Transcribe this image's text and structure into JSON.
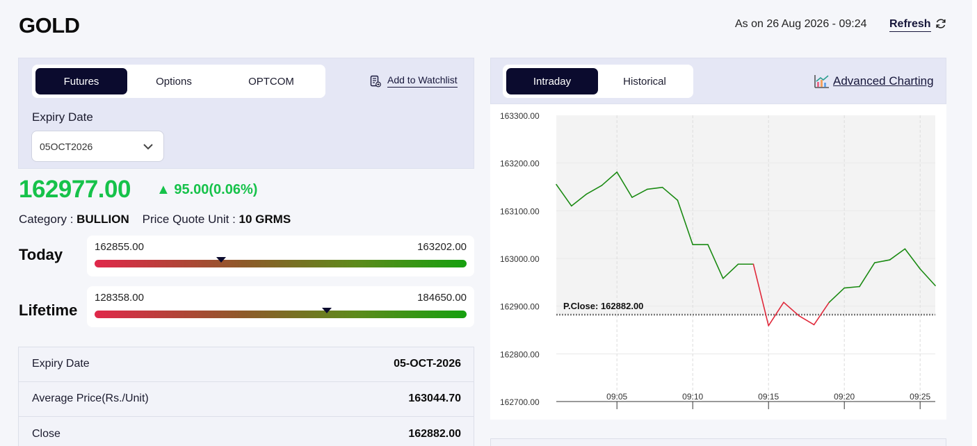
{
  "header": {
    "symbol": "GOLD",
    "as_on": "As on 26 Aug 2026 - 09:24",
    "refresh_label": "Refresh"
  },
  "contract_tabs": [
    {
      "label": "Futures",
      "active": true
    },
    {
      "label": "Options",
      "active": false
    },
    {
      "label": "OPTCOM",
      "active": false
    }
  ],
  "watchlist_label": "Add to Watchlist",
  "expiry": {
    "label": "Expiry Date",
    "selected": "05OCT2026"
  },
  "quote": {
    "price": "162977.00",
    "change": "▲ 95.00(0.06%)",
    "category_label": "Category :",
    "category_value": "BULLION",
    "unit_label": "Price Quote Unit :",
    "unit_value": "10 GRMS"
  },
  "ranges": [
    {
      "label": "Today",
      "low": "162855.00",
      "high": "163202.00",
      "position": 0.34
    },
    {
      "label": "Lifetime",
      "low": "128358.00",
      "high": "184650.00",
      "position": 0.624
    }
  ],
  "details": [
    {
      "key": "Expiry Date",
      "value": "05-OCT-2026"
    },
    {
      "key": "Average Price(Rs./Unit)",
      "value": "163044.70"
    },
    {
      "key": "Close",
      "value": "162882.00"
    }
  ],
  "chart_tabs": [
    {
      "label": "Intraday",
      "active": true
    },
    {
      "label": "Historical",
      "active": false
    }
  ],
  "advanced_charting_label": "Advanced Charting",
  "colors": {
    "up": "#16c24a",
    "line_up": "#1a8a12",
    "line_down": "#e0283a",
    "dark": "#0b0b2e"
  },
  "chart_data": {
    "type": "line",
    "ylim": [
      162700,
      163300
    ],
    "y_ticks": [
      "163300.00",
      "163200.00",
      "163100.00",
      "163000.00",
      "162900.00",
      "162800.00",
      "162700.00"
    ],
    "x_ticks": [
      "09:05",
      "09:10",
      "09:15",
      "09:20",
      "09:25"
    ],
    "x_tick_minutes": [
      5,
      10,
      15,
      20,
      25
    ],
    "xlim": [
      1,
      26
    ],
    "reference": {
      "label": "P.Close: 162882.00",
      "value": 162882
    },
    "x": [
      1,
      2,
      3,
      4,
      5,
      6,
      7,
      8,
      9,
      10,
      11,
      12,
      13,
      14,
      15,
      16,
      17,
      18,
      19,
      20,
      21,
      22,
      23,
      24,
      25,
      26
    ],
    "values": [
      163155,
      163110,
      163135,
      163153,
      163181,
      163128,
      163145,
      163149,
      163122,
      163029,
      163029,
      162958,
      162988,
      162988,
      162859,
      162908,
      162880,
      162861,
      162908,
      162938,
      162941,
      162991,
      162997,
      163020,
      162978,
      162943
    ]
  }
}
